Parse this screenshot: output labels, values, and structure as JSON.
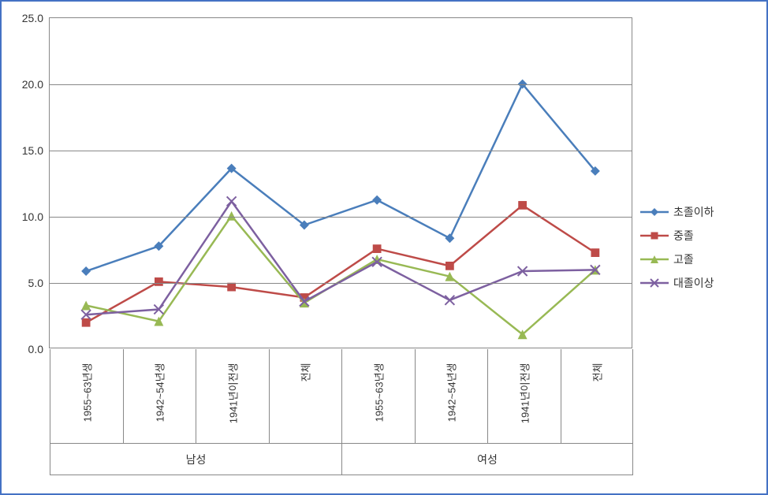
{
  "chart": {
    "type": "line",
    "background_color": "#ffffff",
    "border_color": "#4472c4",
    "grid_color": "#888888",
    "label_color": "#333333",
    "label_fontsize": 14,
    "tick_fontsize": 13,
    "ylim": [
      0,
      25
    ],
    "ytick_step": 5,
    "ytick_labels": [
      "0.0",
      "5.0",
      "10.0",
      "15.0",
      "20.0",
      "25.0"
    ],
    "line_width": 2.5,
    "marker_size": 6,
    "x_groups": [
      {
        "label": "남성",
        "sub": [
          "1955~63년생",
          "1942~54년생",
          "1941년이전생",
          "전체"
        ]
      },
      {
        "label": "여성",
        "sub": [
          "1955~63년생",
          "1942~54년생",
          "1941년이전생",
          "전체"
        ]
      }
    ],
    "series": [
      {
        "name": "초졸이하",
        "color": "#4a7ebb",
        "marker": "diamond",
        "values": [
          5.8,
          7.7,
          13.6,
          9.3,
          11.2,
          8.3,
          20.0,
          13.4
        ]
      },
      {
        "name": "중졸",
        "color": "#be4b48",
        "marker": "square",
        "values": [
          1.9,
          5.0,
          4.6,
          3.8,
          7.5,
          6.2,
          10.8,
          7.2
        ]
      },
      {
        "name": "고졸",
        "color": "#98b954",
        "marker": "triangle",
        "values": [
          3.2,
          2.0,
          10.0,
          3.4,
          6.7,
          5.4,
          1.0,
          5.9
        ]
      },
      {
        "name": "대졸이상",
        "color": "#7d60a0",
        "marker": "x",
        "values": [
          2.5,
          2.9,
          11.1,
          3.5,
          6.5,
          3.6,
          5.8,
          5.9
        ]
      }
    ]
  }
}
